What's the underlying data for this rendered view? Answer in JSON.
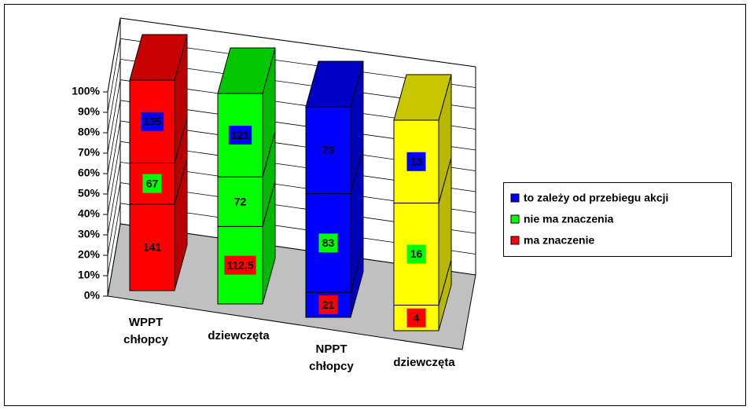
{
  "chart_data": {
    "type": "bar3d-stacked-percent",
    "categories": [
      "WPPT chłopcy",
      "dziewczęta",
      "NPPT chłopcy",
      "dziewczęta"
    ],
    "category_colors": [
      "#ff0000",
      "#00ff00",
      "#0000ff",
      "#ffff00"
    ],
    "series": [
      {
        "name": "ma znaczenie",
        "color": "#ff0000",
        "values": [
          141,
          112.5,
          21,
          4
        ],
        "value_labels": [
          "141",
          "112,5",
          "21",
          "4"
        ]
      },
      {
        "name": "nie ma znaczenia",
        "color": "#00ff00",
        "values": [
          67,
          72,
          83,
          16
        ]
      },
      {
        "name": "to zależy od przebiegu akcji",
        "color": "#0000ff",
        "values": [
          135,
          121,
          73,
          13
        ]
      }
    ],
    "ylim": [
      0,
      100
    ],
    "yticks": [
      {
        "value": 0,
        "label": "0%"
      },
      {
        "value": 10,
        "label": "10%"
      },
      {
        "value": 20,
        "label": "20%"
      },
      {
        "value": 30,
        "label": "30%"
      },
      {
        "value": 40,
        "label": "40%"
      },
      {
        "value": 50,
        "label": "50%"
      },
      {
        "value": 60,
        "label": "60%"
      },
      {
        "value": 70,
        "label": "70%"
      },
      {
        "value": 80,
        "label": "80%"
      },
      {
        "value": 90,
        "label": "90%"
      },
      {
        "value": 100,
        "label": "100%"
      }
    ],
    "grid": true,
    "legend": "right"
  }
}
